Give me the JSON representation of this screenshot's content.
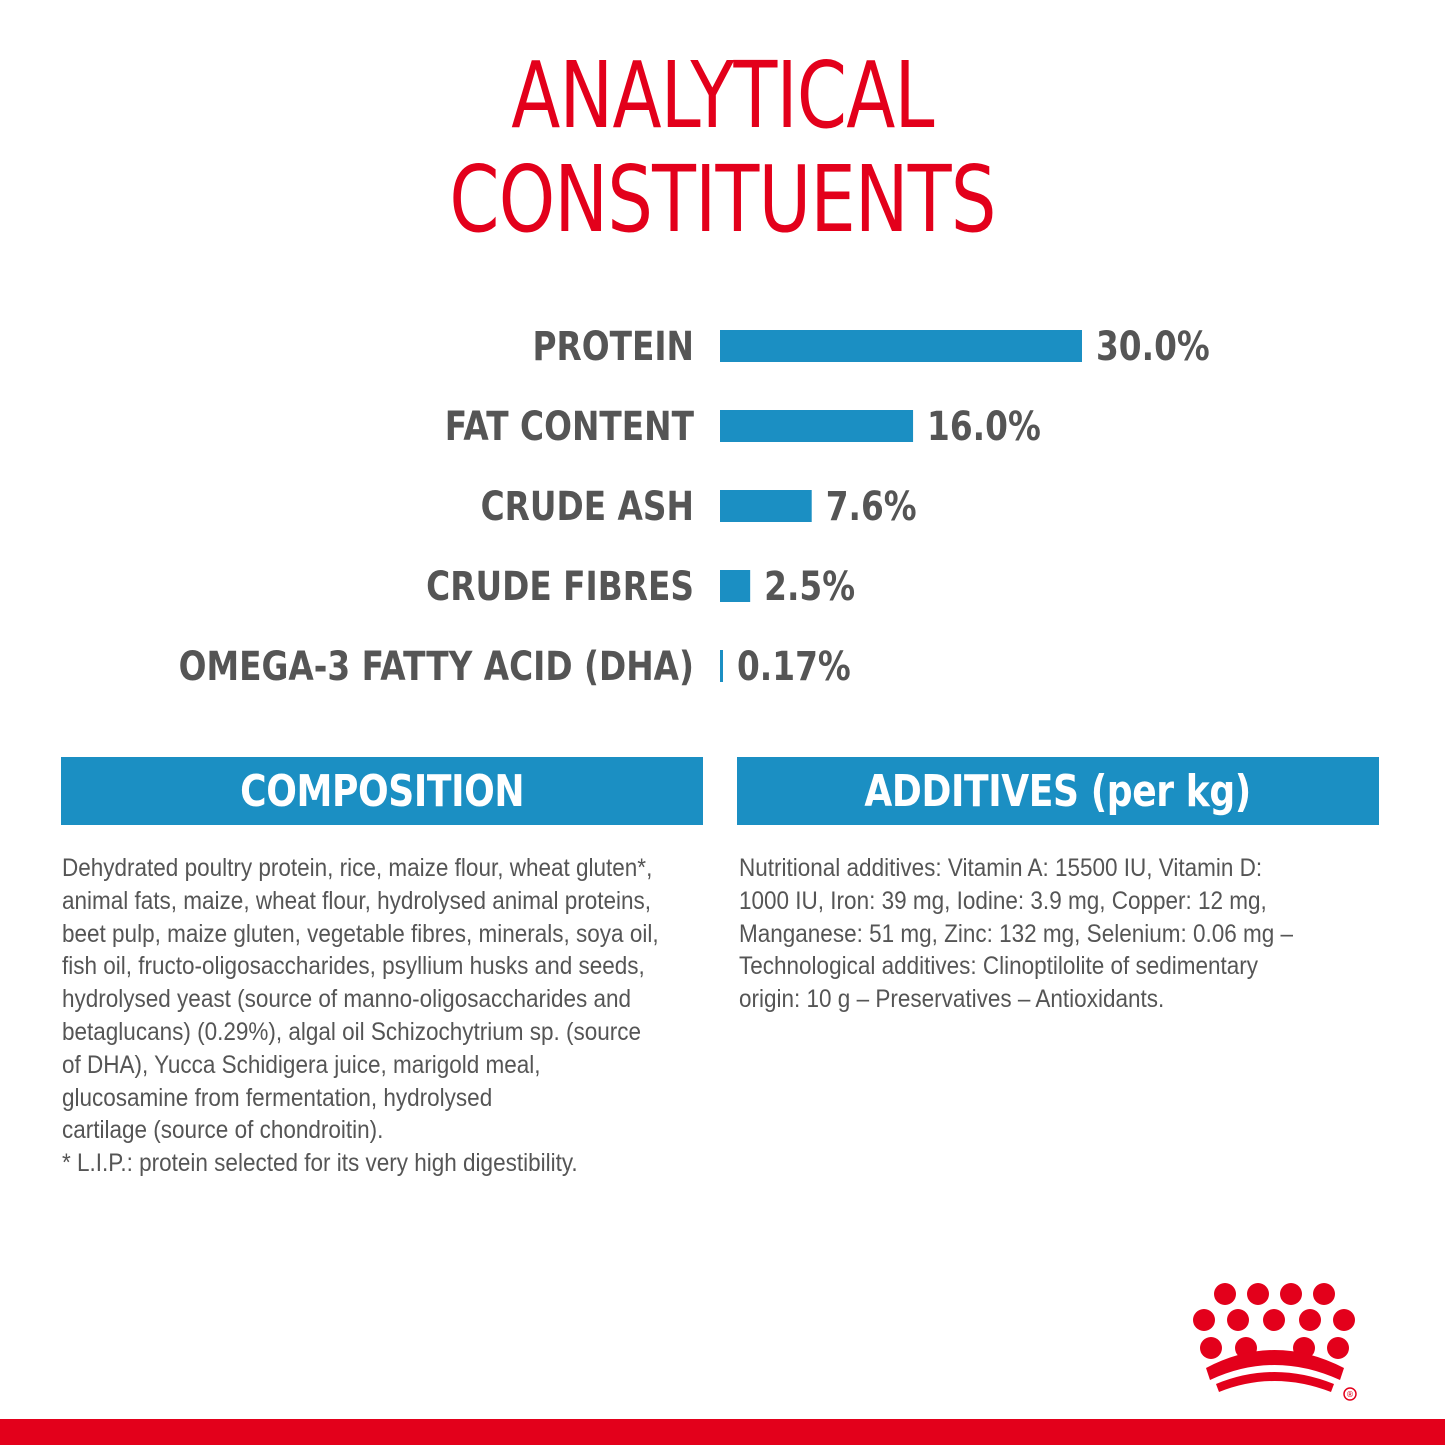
{
  "title": {
    "line1": "ANALYTICAL",
    "line2": "CONSTITUENTS"
  },
  "chart_data": {
    "type": "bar",
    "orientation": "horizontal",
    "title": "ANALYTICAL CONSTITUENTS",
    "categories": [
      "PROTEIN",
      "FAT CONTENT",
      "CRUDE ASH",
      "CRUDE FIBRES",
      "OMEGA-3 FATTY ACID (DHA)"
    ],
    "values": [
      30.0,
      16.0,
      7.6,
      2.5,
      0.17
    ],
    "value_labels": [
      "30.0%",
      "16.0%",
      "7.6%",
      "2.5%",
      "0.17%"
    ],
    "xlabel": "",
    "ylabel": "",
    "unit": "%",
    "xlim": [
      0,
      30
    ],
    "grid": false,
    "legend": "none",
    "bar_color": "#1b8fc3"
  },
  "composition": {
    "header": "COMPOSITION",
    "lines": [
      "Dehydrated poultry protein, rice, maize flour, wheat gluten*,",
      "animal fats, maize, wheat flour, hydrolysed animal proteins,",
      "beet pulp, maize gluten, vegetable fibres, minerals, soya oil,",
      "fish oil, fructo-oligosaccharides, psyllium husks and seeds,",
      "hydrolysed yeast (source of manno-oligosaccharides and",
      "betaglucans) (0.29%), algal oil Schizochytrium sp. (source",
      "of DHA), Yucca Schidigera juice, marigold meal,",
      "glucosamine from fermentation, hydrolysed",
      "cartilage (source of chondroitin).",
      "* L.I.P.: protein selected for its very high digestibility."
    ]
  },
  "additives": {
    "header": "ADDITIVES (per kg)",
    "lines": [
      "Nutritional additives: Vitamin A: 15500 IU, Vitamin D:",
      "1000 IU, Iron: 39 mg, Iodine: 3.9 mg, Copper: 12 mg,",
      "Manganese: 51 mg, Zinc: 132 mg, Selenium: 0.06 mg –",
      "Technological additives: Clinoptilolite of sedimentary",
      "origin: 10 g – Preservatives – Antioxidants."
    ]
  },
  "logo": {
    "icon": "crown-logo-icon",
    "mark": "®"
  },
  "colors": {
    "brand_red": "#e3001b",
    "accent_blue": "#1b8fc3",
    "text_gray": "#555555"
  }
}
